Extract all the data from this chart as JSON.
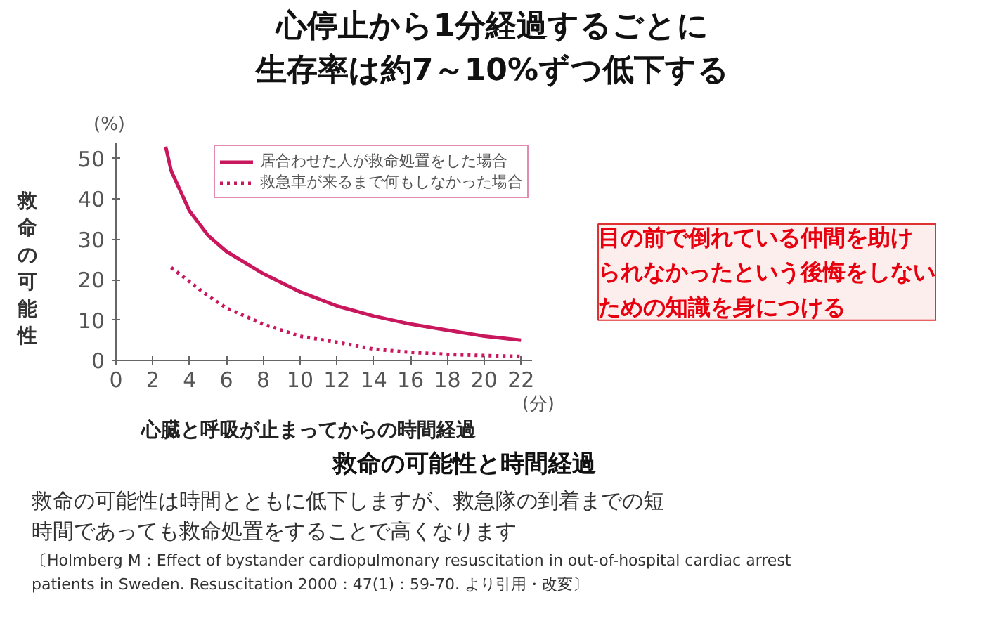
{
  "chart_data": {
    "type": "line",
    "title": "心停止から1分経過するごとに生存率は約7～10%ずつ低下する",
    "ylabel": "救命の可能性",
    "xlabel": "心臓と呼吸が止まってからの時間経過",
    "xlim": [
      0,
      22.6
    ],
    "ylim": [
      0,
      54
    ],
    "xticks": [
      0,
      2,
      4,
      6,
      8,
      10,
      12,
      14,
      16,
      18,
      20,
      22
    ],
    "yticks": [
      0,
      10,
      20,
      30,
      40,
      50
    ],
    "grid": false,
    "legend": "top right",
    "marker": "none",
    "series": [
      {
        "name": "居合わせた人が救命処置をした場合",
        "color": "#c8175d",
        "line_style": "solid",
        "x": [
          2.7,
          3,
          4,
          5,
          6,
          8,
          10,
          12,
          14,
          16,
          18,
          20,
          22
        ],
        "values": [
          53,
          47,
          37,
          31,
          27,
          21.5,
          17,
          13.5,
          11,
          9,
          7.5,
          6,
          5
        ]
      },
      {
        "name": "救急車が来るまで何もしなかった場合",
        "color": "#c8175d",
        "line_style": "dotted",
        "x": [
          3,
          4,
          5,
          6,
          8,
          10,
          12,
          14,
          16,
          18,
          20,
          22
        ],
        "values": [
          23,
          19.5,
          16,
          13,
          9,
          6,
          4.5,
          2.8,
          2,
          1.5,
          1.2,
          1
        ]
      }
    ],
    "annotations": [
      "(%)",
      "(分)",
      "目の前で倒れている仲間を助けられなかったという後悔をしないための知識を身につける",
      "救命の可能性と時間経過",
      "救命の可能性は時間とともに低下しますが、救急隊の到着までの短時間であっても救命処置をすることで高くなります",
      "〔Holmberg M：Effect of bystander cardiopulmonary resuscitation in out-of-hospital cardiac arrest patients in Sweden. Resuscitation 2000：47(1)：59-70. より引用・改変〕"
    ]
  }
}
